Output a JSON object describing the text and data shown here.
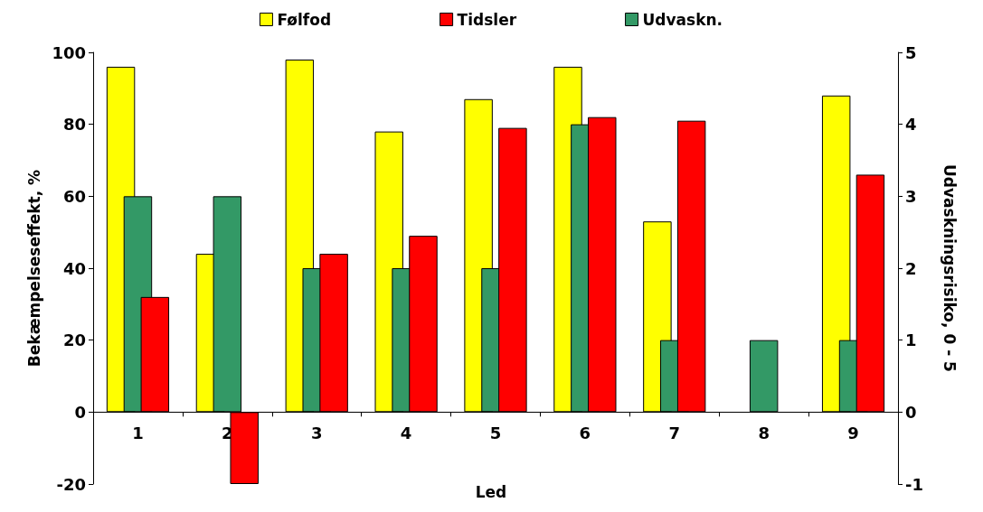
{
  "chart_data": {
    "type": "bar",
    "xlabel": "Led",
    "ylabel": "Bekæmpelseseffekt, %",
    "y2label": "Udvaskningsrisiko, 0 - 5",
    "categories": [
      "1",
      "2",
      "3",
      "4",
      "5",
      "6",
      "7",
      "8",
      "9"
    ],
    "series": [
      {
        "name": "Følfod",
        "color": "#ffff00",
        "values": [
          96,
          44,
          98,
          78,
          87,
          96,
          53,
          null,
          88
        ]
      },
      {
        "name": "Tidsler",
        "color": "#ff0000",
        "values": [
          32,
          -20,
          44,
          49,
          79,
          82,
          81,
          null,
          66
        ]
      },
      {
        "name": "Udvaskn.",
        "color": "#339966",
        "axis": "y2",
        "values": [
          3,
          3,
          2,
          2,
          2,
          4,
          1,
          1,
          1
        ]
      }
    ],
    "ylim": [
      -20,
      100
    ],
    "yticks": [
      -20,
      0,
      20,
      40,
      60,
      80,
      100
    ],
    "y2lim": [
      -1,
      5
    ],
    "y2ticks": [
      -1,
      0,
      1,
      2,
      3,
      4,
      5
    ],
    "grid": false,
    "legend": "top"
  }
}
